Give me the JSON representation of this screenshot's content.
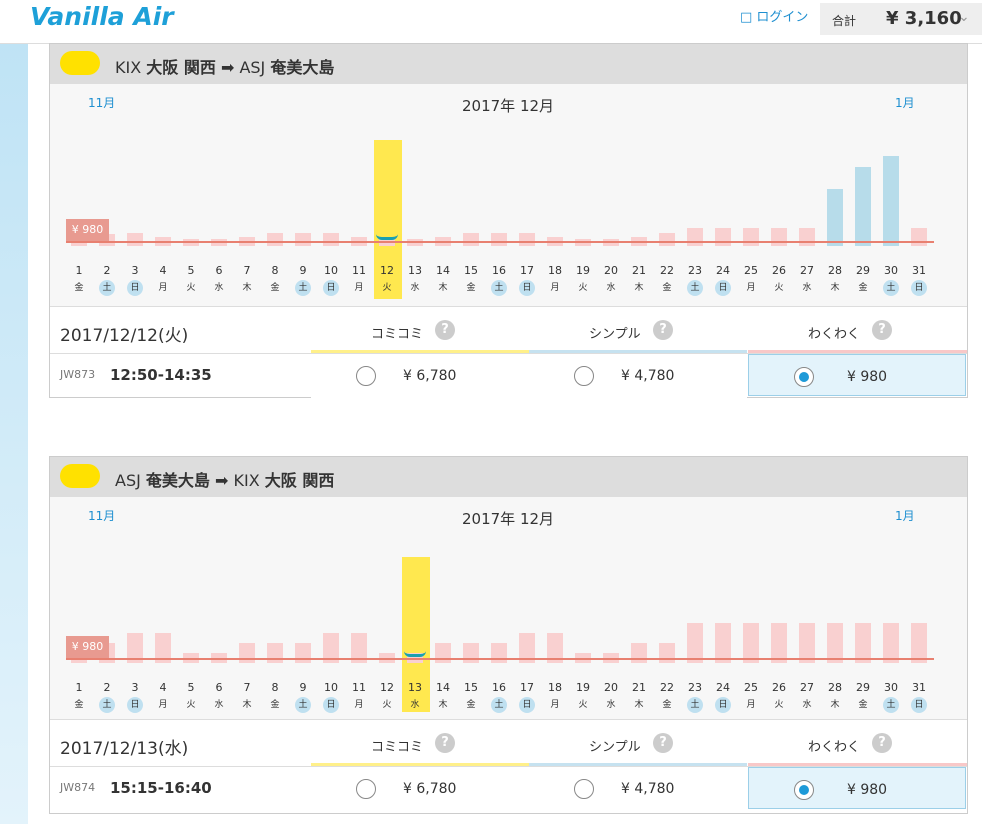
{
  "header": {
    "logo": "Vanilla Air",
    "login": "ログイン",
    "total_label": "合計",
    "total": "¥ 3,160"
  },
  "calendar_days": {
    "days": [
      "1",
      "2",
      "3",
      "4",
      "5",
      "6",
      "7",
      "8",
      "9",
      "10",
      "11",
      "12",
      "13",
      "14",
      "15",
      "16",
      "17",
      "18",
      "19",
      "20",
      "21",
      "22",
      "23",
      "24",
      "25",
      "26",
      "27",
      "28",
      "29",
      "30",
      "31"
    ],
    "weekdays": [
      "金",
      "土",
      "日",
      "月",
      "火",
      "水",
      "木",
      "金",
      "土",
      "日",
      "月",
      "火",
      "水",
      "木",
      "金",
      "土",
      "日",
      "月",
      "火",
      "水",
      "木",
      "金",
      "土",
      "日",
      "月",
      "火",
      "水",
      "木",
      "金",
      "土",
      "日"
    ]
  },
  "help_icon": "?",
  "flights": [
    {
      "origin_code": "KIX",
      "origin": "大阪 関西",
      "dest_code": "ASJ",
      "dest": "奄美大島",
      "prev_month": "11月",
      "month": "2017年 12月",
      "next_month": "1月",
      "min_label": "¥ 980",
      "date": "2017/12/12(火)",
      "flight_no": "JW873",
      "time": "12:50-14:35",
      "fares": [
        {
          "name": "コミコミ",
          "price": "¥ 6,780"
        },
        {
          "name": "シンプル",
          "price": "¥ 4,780"
        },
        {
          "name": "わくわく",
          "price": "¥ 980"
        }
      ]
    },
    {
      "origin_code": "ASJ",
      "origin": "奄美大島",
      "dest_code": "KIX",
      "dest": "大阪 関西",
      "prev_month": "11月",
      "month": "2017年 12月",
      "next_month": "1月",
      "min_label": "¥ 980",
      "date": "2017/12/13(水)",
      "flight_no": "JW874",
      "time": "15:15-16:40",
      "fares": [
        {
          "name": "コミコミ",
          "price": "¥ 6,780"
        },
        {
          "name": "シンプル",
          "price": "¥ 4,780"
        },
        {
          "name": "わくわく",
          "price": "¥ 980"
        }
      ]
    }
  ]
}
